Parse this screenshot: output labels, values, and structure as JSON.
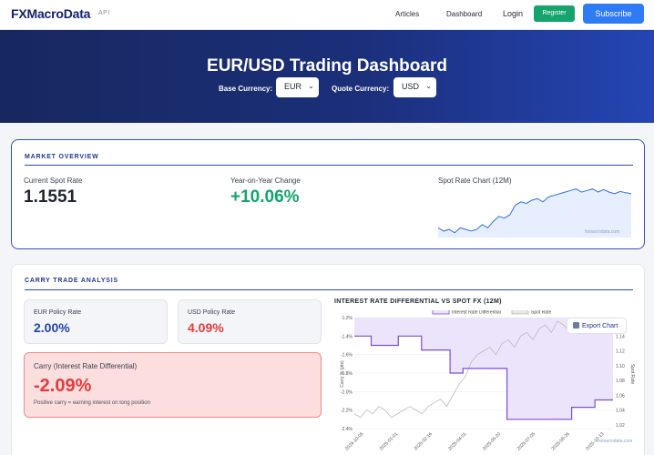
{
  "nav": {
    "logo": "FXMacroData",
    "api_tag": "API",
    "links": [
      "Articles",
      "Dashboard"
    ],
    "login": "Login",
    "register": "Register",
    "subscribe": "Subscribe"
  },
  "hero": {
    "title": "EUR/USD Trading Dashboard",
    "base_label": "Base Currency:",
    "base_value": "EUR",
    "quote_label": "Quote Currency:",
    "quote_value": "USD"
  },
  "market": {
    "section_title": "MARKET OVERVIEW",
    "spot_label": "Current Spot Rate",
    "spot_value": "1.1551",
    "yoy_label": "Year-on-Year Change",
    "yoy_value": "+10.06%",
    "chart_label": "Spot Rate Chart (12M)",
    "watermark": "fxmacrodata.com",
    "colors": {
      "positive": "#14a46c",
      "line": "#2f6fe8",
      "fill": "#e6eeff"
    }
  },
  "carry": {
    "section_title": "CARRY TRADE ANALYSIS",
    "eur_label": "EUR Policy Rate",
    "eur_value": "2.00%",
    "usd_label": "USD Policy Rate",
    "usd_value": "4.09%",
    "carry_label": "Carry (Interest Rate Differential)",
    "carry_value": "-2.09%",
    "carry_note": "Positive carry = earning interest on long position",
    "chart_title": "INTEREST RATE DIFFERENTIAL VS SPOT FX (12M)",
    "export_label": "Export Chart",
    "watermark": "fxmacrodata.com",
    "colors": {
      "eur": "#2543a8",
      "usd": "#e53b3b",
      "negative": "#e53b3b",
      "diff_line": "#7c4ddb",
      "diff_fill": "#ece4fb",
      "spot_line": "#b3b3b3"
    }
  },
  "chart_data": [
    {
      "type": "area",
      "title": "Spot Rate Chart (12M)",
      "series": [
        {
          "values": [
            1.05,
            1.04,
            1.045,
            1.035,
            1.05,
            1.045,
            1.04,
            1.045,
            1.06,
            1.05,
            1.07,
            1.085,
            1.08,
            1.09,
            1.12,
            1.13,
            1.125,
            1.135,
            1.14,
            1.13,
            1.145,
            1.15,
            1.155,
            1.16,
            1.165,
            1.17,
            1.16,
            1.165,
            1.17,
            1.16,
            1.168,
            1.16,
            1.155,
            1.162,
            1.158,
            1.1551
          ]
        }
      ]
    },
    {
      "type": "line",
      "title": "INTEREST RATE DIFFERENTIAL VS SPOT FX (12M)",
      "x_ticks": [
        "2024-10-05",
        "2025-01-01",
        "2025-02-16",
        "2025-04-01",
        "2025-05-20",
        "2025-07-05",
        "2025-08-26",
        "2025-10-13"
      ],
      "y_left_label": "Carry % (pts)",
      "y_left_ticks": [
        "-1.2%",
        "-1.4%",
        "-1.6%",
        "-1.8%",
        "-2.0%",
        "-2.2%",
        "-2.4%"
      ],
      "y_left_lim": [
        -2.4,
        -1.2
      ],
      "y_right_label": "Spot Rate",
      "y_right_ticks": [
        "1.16",
        "1.14",
        "1.12",
        "1.10",
        "1.08",
        "1.06",
        "1.04",
        "1.02"
      ],
      "y_right_lim": [
        1.02,
        1.17
      ],
      "series": [
        {
          "name": "Interest Rate Differential",
          "points": [
            [
              0,
              -1.4
            ],
            [
              0.065,
              -1.4
            ],
            [
              0.065,
              -1.5
            ],
            [
              0.17,
              -1.5
            ],
            [
              0.17,
              -1.4
            ],
            [
              0.26,
              -1.4
            ],
            [
              0.26,
              -1.55
            ],
            [
              0.37,
              -1.55
            ],
            [
              0.37,
              -1.8
            ],
            [
              0.42,
              -1.8
            ],
            [
              0.42,
              -1.75
            ],
            [
              0.59,
              -1.75
            ],
            [
              0.59,
              -2.3
            ],
            [
              0.84,
              -2.3
            ],
            [
              0.84,
              -2.17
            ],
            [
              0.93,
              -2.17
            ],
            [
              0.93,
              -2.09
            ],
            [
              1.0,
              -2.09
            ]
          ]
        },
        {
          "name": "Spot Rate",
          "values": [
            1.04,
            1.035,
            1.045,
            1.04,
            1.05,
            1.045,
            1.035,
            1.04,
            1.045,
            1.05,
            1.045,
            1.04,
            1.05,
            1.055,
            1.06,
            1.05,
            1.065,
            1.08,
            1.09,
            1.11,
            1.12,
            1.125,
            1.13,
            1.12,
            1.135,
            1.14,
            1.13,
            1.145,
            1.15,
            1.14,
            1.155,
            1.16,
            1.15,
            1.165,
            1.16,
            1.15,
            1.17,
            1.16,
            1.155,
            1.162,
            1.15,
            1.158,
            1.1551
          ]
        }
      ]
    }
  ]
}
